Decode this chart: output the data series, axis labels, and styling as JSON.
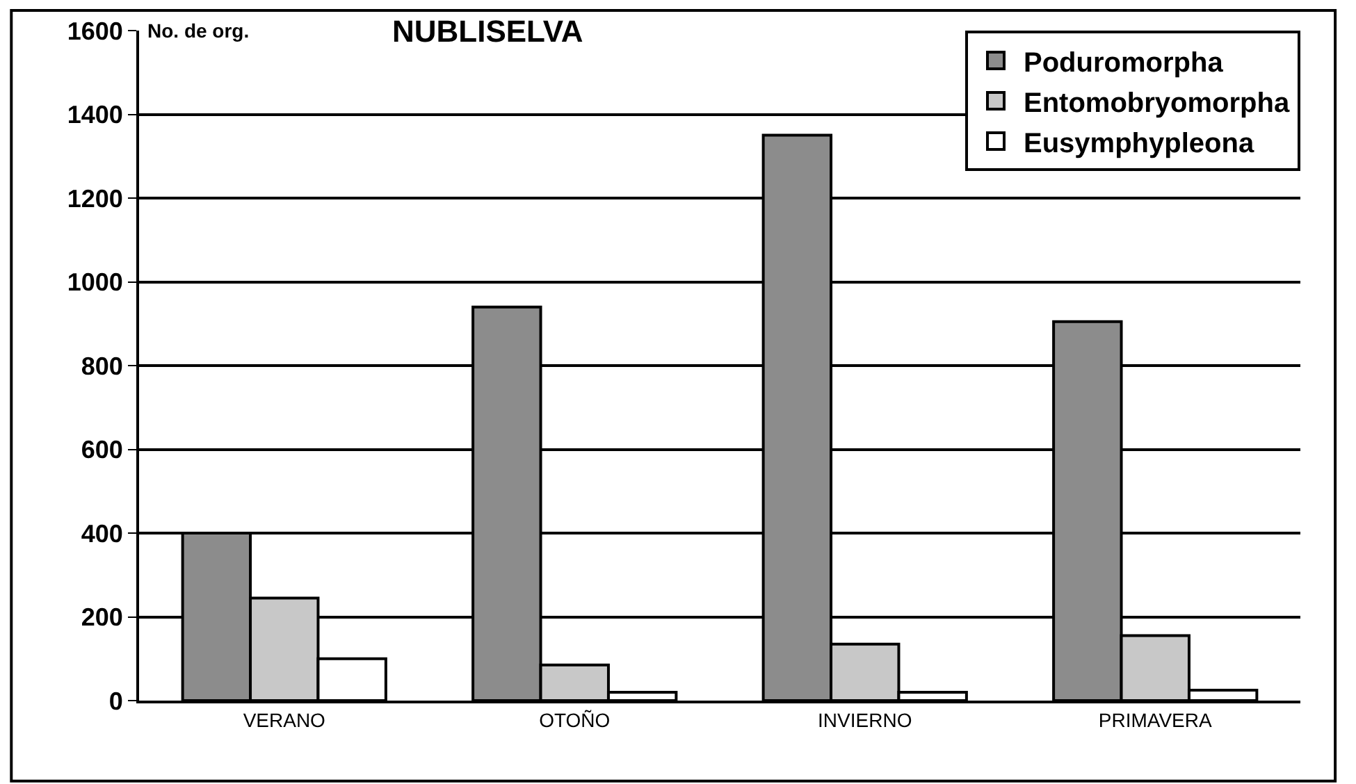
{
  "chart_data": {
    "type": "bar",
    "title": "NUBLISELVA",
    "ylabel": "No. de org.",
    "categories": [
      "VERANO",
      "OTOÑO",
      "INVIERNO",
      "PRIMAVERA"
    ],
    "series": [
      {
        "name": "Poduromorpha",
        "color": "#8c8c8c",
        "values": [
          400,
          940,
          1350,
          905
        ]
      },
      {
        "name": "Entomobryomorpha",
        "color": "#c8c8c8",
        "values": [
          245,
          85,
          135,
          155
        ]
      },
      {
        "name": "Eusymphypleona",
        "color": "#ffffff",
        "values": [
          100,
          20,
          20,
          25
        ]
      }
    ],
    "ylim": [
      0,
      1600
    ],
    "yticks": [
      0,
      200,
      400,
      600,
      800,
      1000,
      1200,
      1400,
      1600
    ],
    "grid": "y",
    "legend": "top right"
  }
}
